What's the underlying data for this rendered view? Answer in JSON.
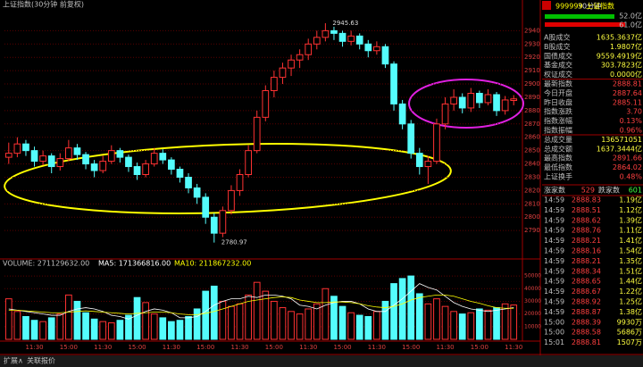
{
  "header": {
    "title": "上证指数(30分钟 前复权)"
  },
  "chart_data": {
    "type": "candlestick",
    "up_color": "#ff3232",
    "down_color": "#54fcfc",
    "candles": [
      [
        2845,
        2856,
        2840,
        2848
      ],
      [
        2848,
        2860,
        2845,
        2855
      ],
      [
        2855,
        2858,
        2846,
        2850
      ],
      [
        2850,
        2853,
        2838,
        2842
      ],
      [
        2842,
        2850,
        2839,
        2846
      ],
      [
        2846,
        2848,
        2833,
        2838
      ],
      [
        2838,
        2848,
        2835,
        2844
      ],
      [
        2844,
        2858,
        2842,
        2852
      ],
      [
        2852,
        2855,
        2843,
        2847
      ],
      [
        2847,
        2849,
        2836,
        2840
      ],
      [
        2840,
        2843,
        2830,
        2835
      ],
      [
        2835,
        2846,
        2833,
        2842
      ],
      [
        2842,
        2854,
        2840,
        2850
      ],
      [
        2850,
        2852,
        2841,
        2845
      ],
      [
        2845,
        2847,
        2834,
        2838
      ],
      [
        2838,
        2841,
        2828,
        2832
      ],
      [
        2832,
        2843,
        2830,
        2840
      ],
      [
        2840,
        2852,
        2838,
        2848
      ],
      [
        2848,
        2851,
        2840,
        2843
      ],
      [
        2843,
        2845,
        2832,
        2836
      ],
      [
        2836,
        2838,
        2826,
        2830
      ],
      [
        2830,
        2833,
        2818,
        2822
      ],
      [
        2822,
        2825,
        2810,
        2815
      ],
      [
        2815,
        2818,
        2795,
        2800
      ],
      [
        2800,
        2803,
        2780.97,
        2788
      ],
      [
        2788,
        2808,
        2785,
        2805
      ],
      [
        2805,
        2824,
        2802,
        2820
      ],
      [
        2820,
        2836,
        2816,
        2832
      ],
      [
        2832,
        2854,
        2830,
        2850
      ],
      [
        2850,
        2880,
        2848,
        2875
      ],
      [
        2875,
        2899,
        2872,
        2895
      ],
      [
        2895,
        2910,
        2890,
        2905
      ],
      [
        2905,
        2916,
        2900,
        2912
      ],
      [
        2912,
        2922,
        2906,
        2918
      ],
      [
        2918,
        2926,
        2912,
        2922
      ],
      [
        2922,
        2934,
        2918,
        2930
      ],
      [
        2930,
        2940,
        2926,
        2935
      ],
      [
        2935,
        2945.63,
        2932,
        2940
      ],
      [
        2940,
        2943,
        2933,
        2938
      ],
      [
        2938,
        2940,
        2928,
        2932
      ],
      [
        2932,
        2940,
        2929,
        2936
      ],
      [
        2936,
        2938,
        2926,
        2930
      ],
      [
        2930,
        2933,
        2920,
        2925
      ],
      [
        2925,
        2932,
        2922,
        2928
      ],
      [
        2928,
        2930,
        2912,
        2915
      ],
      [
        2915,
        2917,
        2880,
        2885
      ],
      [
        2885,
        2888,
        2866,
        2870
      ],
      [
        2870,
        2873,
        2844,
        2848
      ],
      [
        2848,
        2852,
        2832,
        2838
      ],
      [
        2838,
        2846,
        2825,
        2842
      ],
      [
        2842,
        2874,
        2840,
        2870
      ],
      [
        2870,
        2890,
        2866,
        2885
      ],
      [
        2885,
        2896,
        2880,
        2890
      ],
      [
        2890,
        2893,
        2878,
        2882
      ],
      [
        2882,
        2897,
        2879,
        2893
      ],
      [
        2893,
        2895,
        2882,
        2886
      ],
      [
        2886,
        2896,
        2884,
        2892
      ],
      [
        2892,
        2894,
        2876,
        2880
      ],
      [
        2880,
        2891,
        2877,
        2888
      ],
      [
        2887.64,
        2891.66,
        2884,
        2888.81
      ]
    ],
    "categories": [
      null,
      null,
      null,
      "11:30",
      null,
      null,
      null,
      "15:00",
      null,
      null,
      null,
      "11:30",
      null,
      null,
      null,
      "15:00",
      null,
      null,
      null,
      "11:30",
      null,
      null,
      null,
      "15:00",
      null,
      null,
      null,
      "11:30",
      null,
      null,
      null,
      "15:00",
      null,
      null,
      null,
      "11:30",
      null,
      null,
      null,
      "15:00",
      null,
      null,
      null,
      "11:30",
      null,
      null,
      null,
      "15:00",
      null,
      null,
      null,
      "11:30",
      null,
      null,
      null,
      "15:00",
      null,
      null,
      null,
      "11:30"
    ],
    "ylim": [
      2770,
      2955
    ],
    "yticks": [
      2790,
      2800,
      2810,
      2820,
      2830,
      2840,
      2850,
      2860,
      2870,
      2880,
      2890,
      2900,
      2910,
      2920,
      2930,
      2940
    ],
    "max_label": 2945.63,
    "min_label": 2780.97,
    "volume": {
      "legend": "VOLUME: 271129632.00",
      "ma5_legend": "MA5: 171366816.00",
      "ma10_legend": "MA10: 211867232.00",
      "ma5_color": "#ffffff",
      "ma10_color": "#ffff00",
      "values": [
        32000,
        22000,
        18000,
        15000,
        14000,
        17000,
        20000,
        35000,
        30000,
        21000,
        16000,
        14000,
        13000,
        15000,
        19000,
        33000,
        29000,
        20000,
        17000,
        14000,
        15000,
        18000,
        24000,
        38000,
        42000,
        30000,
        26000,
        28000,
        35000,
        45000,
        38000,
        30000,
        25000,
        22000,
        20000,
        24000,
        28000,
        40000,
        34000,
        26000,
        21000,
        19000,
        18000,
        22000,
        30000,
        44000,
        48000,
        50000,
        36000,
        28000,
        32000,
        26000,
        22000,
        20000,
        21000,
        24000,
        23000,
        25000,
        28000,
        27113
      ],
      "ma5": [
        24000,
        23000,
        22000,
        21000,
        20000,
        19000,
        19000,
        22000,
        24000,
        25000,
        24000,
        22000,
        19000,
        18000,
        16000,
        19000,
        22000,
        24000,
        23000,
        21000,
        17000,
        17000,
        18000,
        22000,
        27000,
        30000,
        32000,
        32000,
        34000,
        33000,
        35000,
        35000,
        34000,
        32000,
        27000,
        26000,
        24000,
        27000,
        29000,
        30000,
        30000,
        28000,
        24000,
        22000,
        22000,
        27000,
        32000,
        38000,
        44000,
        41000,
        39000,
        34000,
        29000,
        26000,
        24000,
        23000,
        22000,
        23000,
        24000,
        25000
      ],
      "ma10": [
        23000,
        23000,
        22500,
        22000,
        21500,
        21000,
        21000,
        21500,
        22000,
        22500,
        22000,
        21500,
        21000,
        20500,
        20000,
        20500,
        21000,
        21500,
        21500,
        21000,
        20000,
        19500,
        19500,
        20500,
        22000,
        24000,
        26000,
        28000,
        30000,
        31000,
        32000,
        33000,
        33500,
        33000,
        31000,
        30000,
        29000,
        29000,
        29500,
        29500,
        29000,
        28000,
        26500,
        25500,
        25000,
        26000,
        28000,
        31000,
        33000,
        34000,
        35000,
        35000,
        34000,
        32000,
        30000,
        28500,
        26500,
        25000,
        24500,
        24500
      ],
      "ylim": [
        0,
        55000
      ],
      "yticks": [
        10000,
        20000,
        30000,
        40000,
        50000
      ]
    }
  },
  "panel": {
    "code": "999999",
    "name": "上证指数",
    "bars": [
      "52.0亿",
      "61.0亿"
    ],
    "rows": [
      [
        "A股成交",
        "1635.3637亿"
      ],
      [
        "B股成交",
        "1.9807亿"
      ],
      [
        "国债成交",
        "9559.4919亿"
      ],
      [
        "基金成交",
        "303.7823亿"
      ],
      [
        "权证成交",
        "0.0000亿"
      ],
      [
        "最新指数",
        "2888.81"
      ],
      [
        "今日开盘",
        "2887.64"
      ],
      [
        "昨日收盘",
        "2885.11"
      ],
      [
        "指数涨跌",
        "3.70"
      ],
      [
        "指数涨幅",
        "0.13%"
      ],
      [
        "指数振幅",
        "0.96%"
      ],
      [
        "总成交量",
        "136571051"
      ],
      [
        "总成交额",
        "1637.3444亿"
      ],
      [
        "最高指数",
        "2891.66"
      ],
      [
        "最低指数",
        "2864.02"
      ],
      [
        "上证换手",
        "0.48%"
      ]
    ],
    "breadth": [
      "涨家数",
      "529",
      "跌家数",
      "601"
    ],
    "trades": [
      [
        "14:59",
        "2888.83",
        "1.19亿"
      ],
      [
        "14:59",
        "2888.51",
        "1.12亿"
      ],
      [
        "14:59",
        "2888.62",
        "1.39亿"
      ],
      [
        "14:59",
        "2888.76",
        "1.11亿"
      ],
      [
        "14:59",
        "2888.21",
        "1.41亿"
      ],
      [
        "14:59",
        "2888.16",
        "1.54亿"
      ],
      [
        "14:59",
        "2888.21",
        "1.35亿"
      ],
      [
        "14:59",
        "2888.34",
        "1.51亿"
      ],
      [
        "14:59",
        "2888.65",
        "1.44亿"
      ],
      [
        "14:59",
        "2888.67",
        "1.22亿"
      ],
      [
        "14:59",
        "2888.92",
        "1.25亿"
      ],
      [
        "14:59",
        "2888.87",
        "1.38亿"
      ],
      [
        "15:00",
        "2888.39",
        "9930万"
      ],
      [
        "15:00",
        "2888.58",
        "5686万"
      ],
      [
        "15:01",
        "2888.81",
        "1507万"
      ]
    ]
  },
  "footer": {
    "tabs": [
      "扩展∧",
      "关联报价"
    ],
    "period": "30分钟"
  }
}
